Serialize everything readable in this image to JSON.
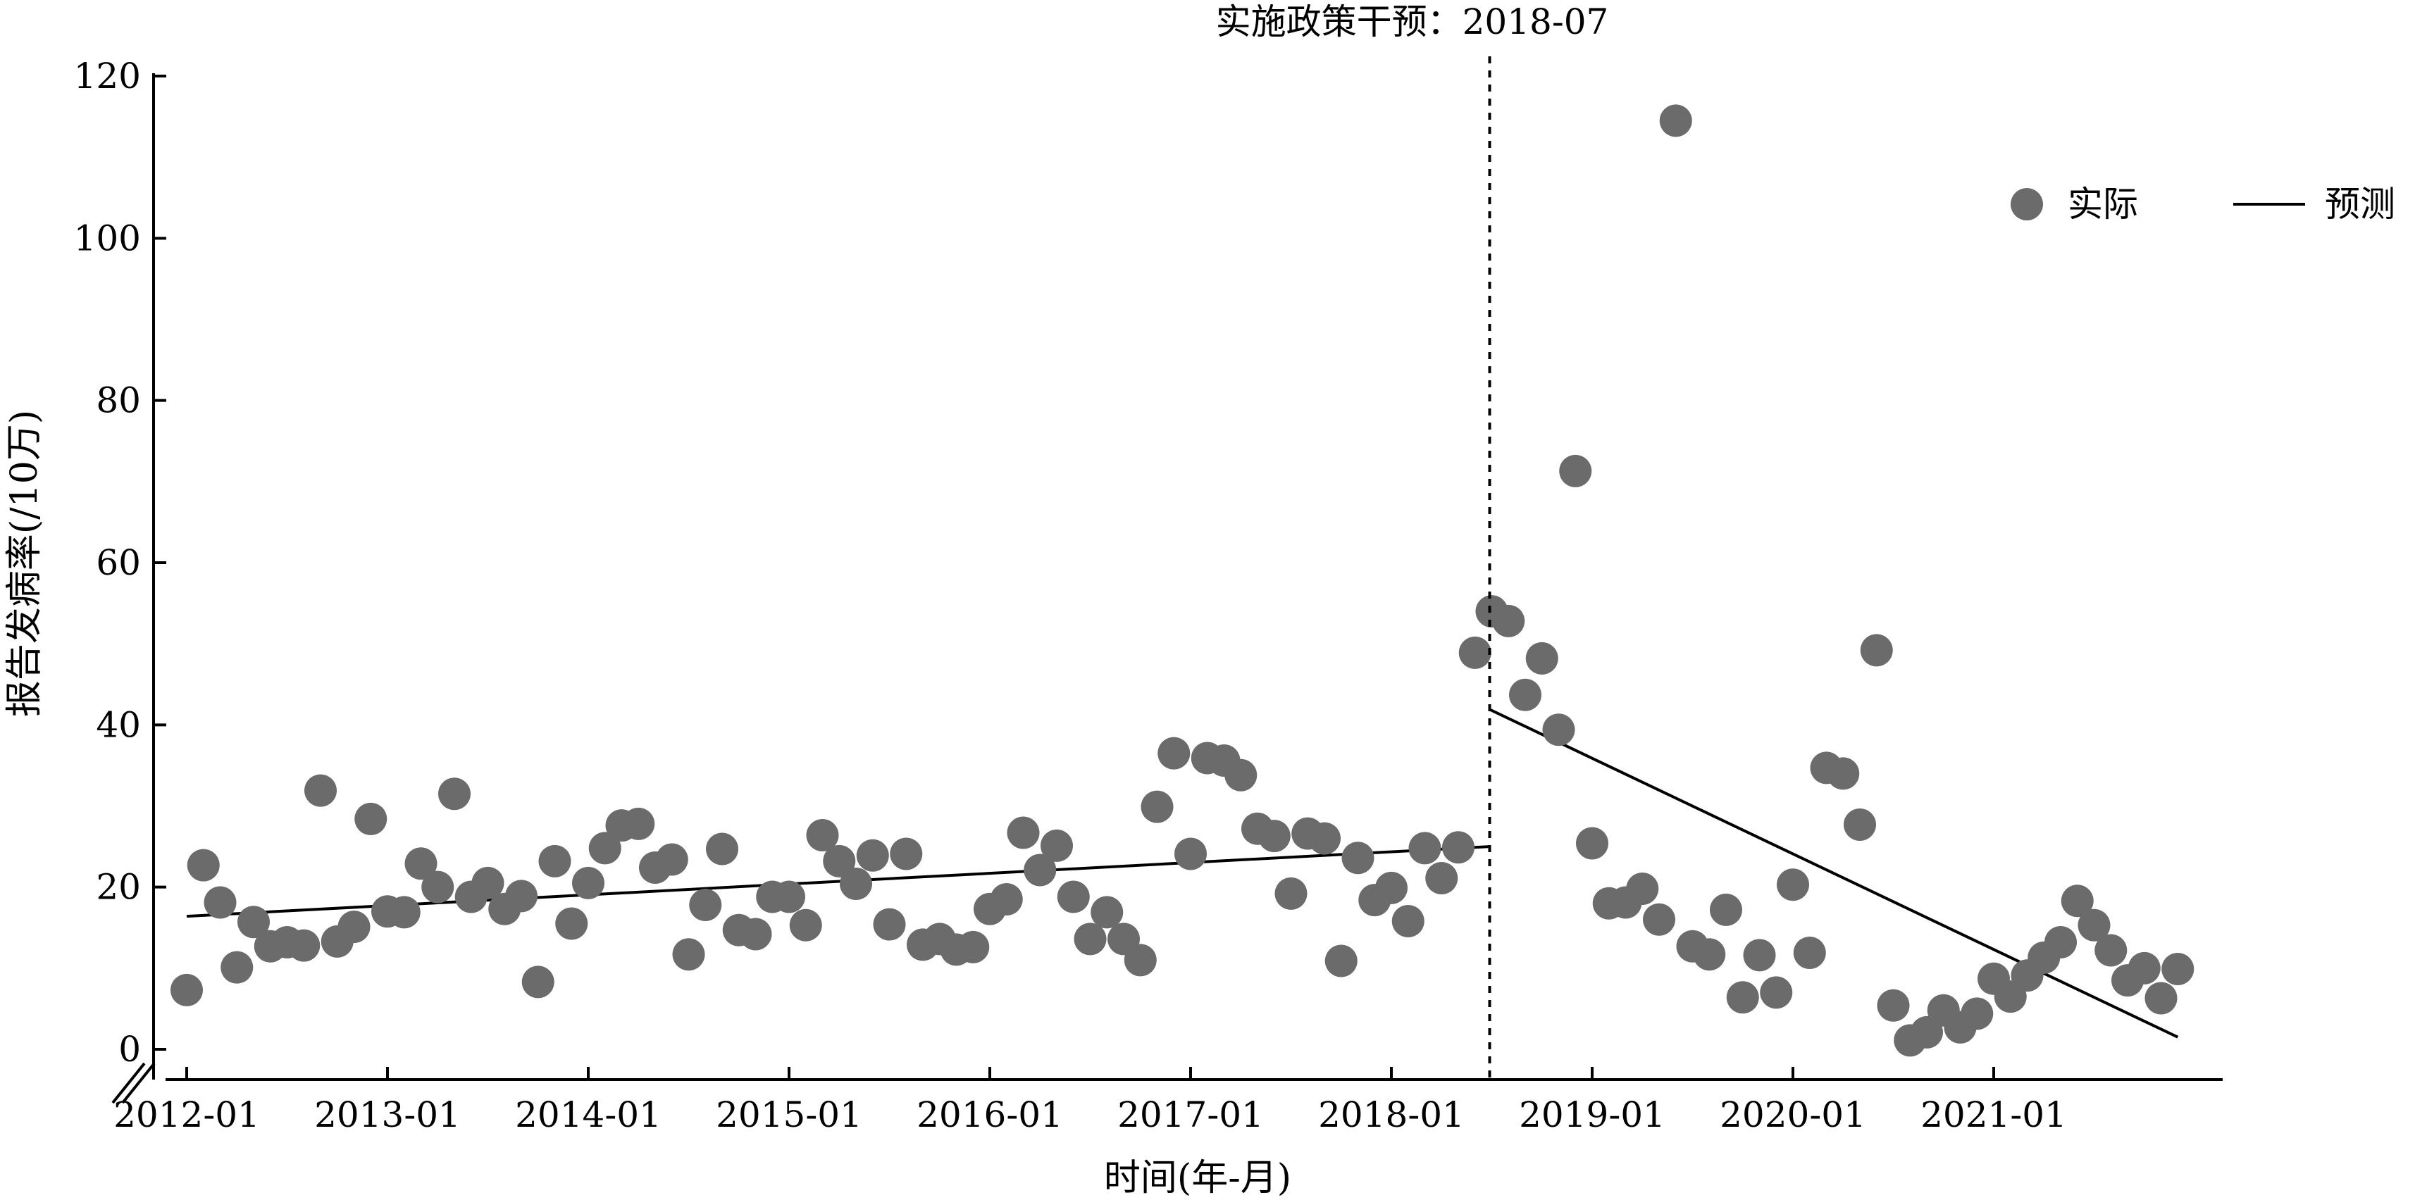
{
  "chart_data": {
    "type": "scatter",
    "title": "",
    "xlabel": "时间(年-月)",
    "ylabel": "报告发病率(/10万)",
    "ylim": [
      0,
      120
    ],
    "xlim": [
      "2012-01",
      "2022-01"
    ],
    "yticks": [
      0,
      20,
      40,
      60,
      80,
      100,
      120
    ],
    "xticks": [
      "2012-01",
      "2013-01",
      "2014-01",
      "2015-01",
      "2016-01",
      "2017-01",
      "2018-01",
      "2019-01",
      "2020-01",
      "2021-01"
    ],
    "grid": false,
    "legend_position": "top-right",
    "colors": {
      "actual": "#6b6b6b",
      "predicted": "#000000"
    },
    "intervention": {
      "date": "2018-07",
      "label": "实施政策干预：2018-07"
    },
    "legend": [
      {
        "name": "实际",
        "marker": "circle"
      },
      {
        "name": "预测",
        "marker": "line"
      }
    ],
    "series": [
      {
        "name": "实际",
        "type": "scatter",
        "x": [
          "2012-01",
          "2012-02",
          "2012-03",
          "2012-04",
          "2012-05",
          "2012-06",
          "2012-07",
          "2012-08",
          "2012-09",
          "2012-10",
          "2012-11",
          "2012-12",
          "2013-01",
          "2013-02",
          "2013-03",
          "2013-04",
          "2013-05",
          "2013-06",
          "2013-07",
          "2013-08",
          "2013-09",
          "2013-10",
          "2013-11",
          "2013-12",
          "2014-01",
          "2014-02",
          "2014-03",
          "2014-04",
          "2014-05",
          "2014-06",
          "2014-07",
          "2014-08",
          "2014-09",
          "2014-10",
          "2014-11",
          "2014-12",
          "2015-01",
          "2015-02",
          "2015-03",
          "2015-04",
          "2015-05",
          "2015-06",
          "2015-07",
          "2015-08",
          "2015-09",
          "2015-10",
          "2015-11",
          "2015-12",
          "2016-01",
          "2016-02",
          "2016-03",
          "2016-04",
          "2016-05",
          "2016-06",
          "2016-07",
          "2016-08",
          "2016-09",
          "2016-10",
          "2016-11",
          "2016-12",
          "2017-01",
          "2017-02",
          "2017-03",
          "2017-04",
          "2017-05",
          "2017-06",
          "2017-07",
          "2017-08",
          "2017-09",
          "2017-10",
          "2017-11",
          "2017-12",
          "2018-01",
          "2018-02",
          "2018-03",
          "2018-04",
          "2018-05",
          "2018-06",
          "2018-07",
          "2018-08",
          "2018-09",
          "2018-10",
          "2018-11",
          "2018-12",
          "2019-01",
          "2019-02",
          "2019-03",
          "2019-04",
          "2019-05",
          "2019-06",
          "2019-07",
          "2019-08",
          "2019-09",
          "2019-10",
          "2019-11",
          "2019-12",
          "2020-01",
          "2020-02",
          "2020-03",
          "2020-04",
          "2020-05",
          "2020-06",
          "2020-07",
          "2020-08",
          "2020-09",
          "2020-10",
          "2020-11",
          "2020-12",
          "2021-01",
          "2021-02",
          "2021-03",
          "2021-04",
          "2021-05",
          "2021-06",
          "2021-07",
          "2021-08",
          "2021-09",
          "2021-10",
          "2021-11",
          "2021-12"
        ],
        "values": [
          7.3,
          22.7,
          18.1,
          10.1,
          15.7,
          12.7,
          13.2,
          12.8,
          31.9,
          13.3,
          15.1,
          28.4,
          17.0,
          16.9,
          22.9,
          20.0,
          31.5,
          18.8,
          20.5,
          17.3,
          18.9,
          8.3,
          23.2,
          15.5,
          20.5,
          24.8,
          27.6,
          27.8,
          22.4,
          23.4,
          11.7,
          17.8,
          24.7,
          14.7,
          14.2,
          18.8,
          18.8,
          15.3,
          26.4,
          23.2,
          20.4,
          23.9,
          15.4,
          24.1,
          12.9,
          13.6,
          12.3,
          12.6,
          17.3,
          18.5,
          26.7,
          22.1,
          25.1,
          18.8,
          13.6,
          16.9,
          13.6,
          11.0,
          29.9,
          36.5,
          24.1,
          35.9,
          35.6,
          33.8,
          27.2,
          26.3,
          19.2,
          26.6,
          26.0,
          10.9,
          23.6,
          18.4,
          19.9,
          15.8,
          24.8,
          21.1,
          24.9,
          48.9,
          54.0,
          52.8,
          43.7,
          48.2,
          39.4,
          71.3,
          25.4,
          18.0,
          18.1,
          19.8,
          16.0,
          114.5,
          12.7,
          11.7,
          17.2,
          6.4,
          11.6,
          7.0,
          20.3,
          11.9,
          34.7,
          34.0,
          27.7,
          49.2,
          5.4,
          1.1,
          2.1,
          4.8,
          2.7,
          4.4,
          8.7,
          6.5,
          9.1,
          11.3,
          13.2,
          18.3,
          15.3,
          12.2,
          8.5,
          10.0,
          6.3,
          9.9
        ]
      },
      {
        "name": "预测",
        "type": "line",
        "segments": [
          {
            "x": [
              "2012-01",
              "2018-07"
            ],
            "values": [
              16.4,
              25.0
            ]
          },
          {
            "x": [
              "2018-07",
              "2021-12"
            ],
            "values": [
              41.9,
              1.5
            ]
          }
        ]
      }
    ]
  }
}
